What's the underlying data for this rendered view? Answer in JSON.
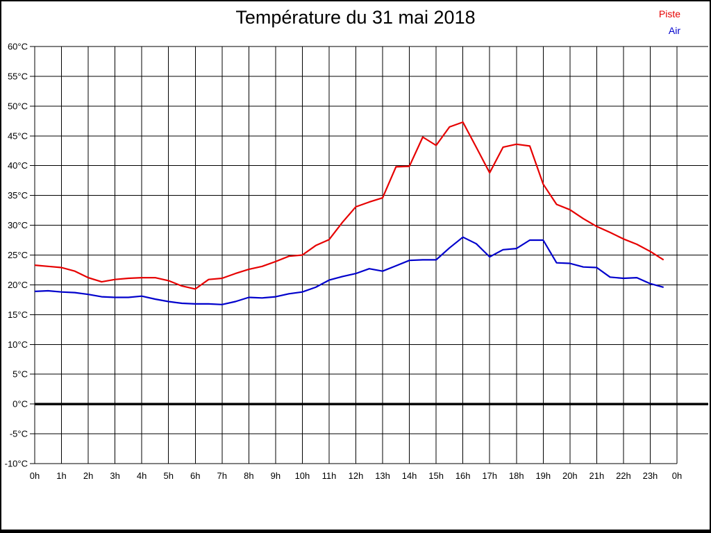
{
  "chart_data": {
    "type": "line",
    "title": "Température du 31 mai 2018",
    "xlabel": "",
    "ylabel": "",
    "x_unit": "hours",
    "x_start": 0,
    "x_step": 0.5,
    "ylim": [
      -10,
      60
    ],
    "ytick_step": 5,
    "grid": true,
    "legend_position": "top-right",
    "zero_line": {
      "value": 0,
      "thick": true,
      "color": "#000000"
    },
    "ytick_labels": [
      "60°C",
      "55°C",
      "50°C",
      "45°C",
      "40°C",
      "35°C",
      "30°C",
      "25°C",
      "20°C",
      "15°C",
      "10°C",
      "5°C",
      "0°C",
      "-5°C",
      "-10°C"
    ],
    "xtick_labels": [
      "0h",
      "1h",
      "2h",
      "3h",
      "4h",
      "5h",
      "6h",
      "7h",
      "8h",
      "9h",
      "10h",
      "11h",
      "12h",
      "13h",
      "14h",
      "15h",
      "16h",
      "17h",
      "18h",
      "19h",
      "20h",
      "21h",
      "22h",
      "23h",
      "0h"
    ],
    "series": [
      {
        "name": "Piste",
        "color": "#e60000",
        "values": [
          23.3,
          23.1,
          22.9,
          22.3,
          21.2,
          20.5,
          20.9,
          21.1,
          21.2,
          21.2,
          20.7,
          19.8,
          19.3,
          20.9,
          21.1,
          21.9,
          22.6,
          23.1,
          23.9,
          24.8,
          25.0,
          26.6,
          27.6,
          30.5,
          33.1,
          33.9,
          34.6,
          39.8,
          39.9,
          44.8,
          43.4,
          46.5,
          47.3,
          43.1,
          38.8,
          43.1,
          43.6,
          43.3,
          36.9,
          33.5,
          32.6,
          31.1,
          29.8,
          28.8,
          27.7,
          26.8,
          25.6,
          24.2
        ]
      },
      {
        "name": "Air",
        "color": "#0000cc",
        "values": [
          18.9,
          19.0,
          18.8,
          18.7,
          18.4,
          18.0,
          17.9,
          17.9,
          18.1,
          17.6,
          17.2,
          16.9,
          16.8,
          16.8,
          16.7,
          17.2,
          17.9,
          17.8,
          18.0,
          18.5,
          18.8,
          19.6,
          20.8,
          21.4,
          21.9,
          22.7,
          22.3,
          23.2,
          24.1,
          24.2,
          24.2,
          26.2,
          28.0,
          26.9,
          24.7,
          25.9,
          26.1,
          27.5,
          27.5,
          23.7,
          23.6,
          23.0,
          22.9,
          21.3,
          21.1,
          21.2,
          20.2,
          19.6
        ]
      }
    ]
  }
}
